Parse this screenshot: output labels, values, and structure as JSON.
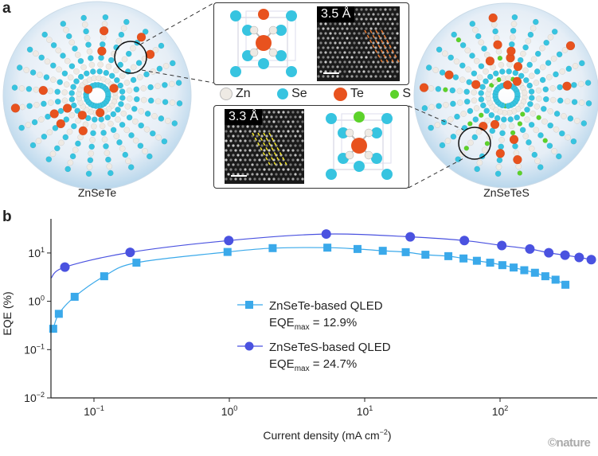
{
  "panel_a": {
    "label": "a",
    "left_sphere_caption": "ZnSeTe",
    "right_sphere_caption": "ZnSeTeS",
    "top_inset_spacing": "3.5 Å",
    "bottom_inset_spacing": "3.3 Å",
    "element_legend": [
      {
        "symbol": "Zn",
        "color": "#eeeae4"
      },
      {
        "symbol": "Se",
        "color": "#37c4e0"
      },
      {
        "symbol": "Te",
        "color": "#e8521e"
      },
      {
        "symbol": "S",
        "color": "#5cd22a"
      }
    ]
  },
  "panel_b": {
    "label": "b"
  },
  "watermark": "©nature",
  "chart_data": {
    "type": "scatter",
    "xlabel": "Current density (mA cm−2)",
    "xlabel_main": "Current density (mA cm",
    "xlabel_exp": "−2",
    "xlabel_end": ")",
    "ylabel": "EQE (%)",
    "x_scale": "log",
    "y_scale": "log",
    "xlim": [
      0.049,
      520
    ],
    "ylim": [
      0.01,
      50
    ],
    "grid": false,
    "legend_position": "center",
    "x_ticks": [
      {
        "base": "10",
        "exp": "−1",
        "value": 0.1
      },
      {
        "base": "10",
        "exp": "0",
        "value": 1
      },
      {
        "base": "10",
        "exp": "1",
        "value": 10
      },
      {
        "base": "10",
        "exp": "2",
        "value": 100
      }
    ],
    "y_ticks": [
      {
        "base": "10",
        "exp": "−2",
        "value": 0.01
      },
      {
        "base": "10",
        "exp": "−1",
        "value": 0.1
      },
      {
        "base": "10",
        "exp": "0",
        "value": 1
      },
      {
        "base": "10",
        "exp": "1",
        "value": 10
      }
    ],
    "series": [
      {
        "name": "ZnSeTe-based QLED",
        "eqe_max_label": "EQE",
        "eqe_max_sub": "max",
        "eqe_max_value": " = 12.9%",
        "marker": "square",
        "color": "#3aa9ea",
        "x": [
          0.05,
          0.055,
          0.072,
          0.119,
          0.206,
          0.97,
          2.09,
          5.3,
          8.85,
          13.6,
          20.1,
          28.1,
          41.5,
          53.7,
          67.4,
          84.5,
          104,
          126,
          151,
          181,
          216,
          257,
          304
        ],
        "y": [
          0.27,
          0.55,
          1.24,
          3.3,
          6.3,
          10.5,
          12.6,
          12.9,
          12.1,
          11.1,
          10.4,
          9.2,
          8.6,
          7.7,
          6.9,
          6.3,
          5.6,
          5.0,
          4.4,
          3.9,
          3.3,
          2.8,
          2.2
        ]
      },
      {
        "name": "ZnSeTeS-based QLED",
        "eqe_max_label": "EQE",
        "eqe_max_sub": "max",
        "eqe_max_value": " = 24.7%",
        "marker": "circle",
        "color": "#4a52e0",
        "x": [
          0.061,
          0.185,
          0.99,
          5.2,
          21.7,
          54.5,
          103,
          166,
          229,
          302,
          384,
          472
        ],
        "y": [
          5.1,
          10.3,
          18.1,
          24.7,
          21.6,
          18.1,
          14.3,
          12.1,
          10.1,
          9.0,
          8.1,
          7.3
        ]
      }
    ]
  }
}
